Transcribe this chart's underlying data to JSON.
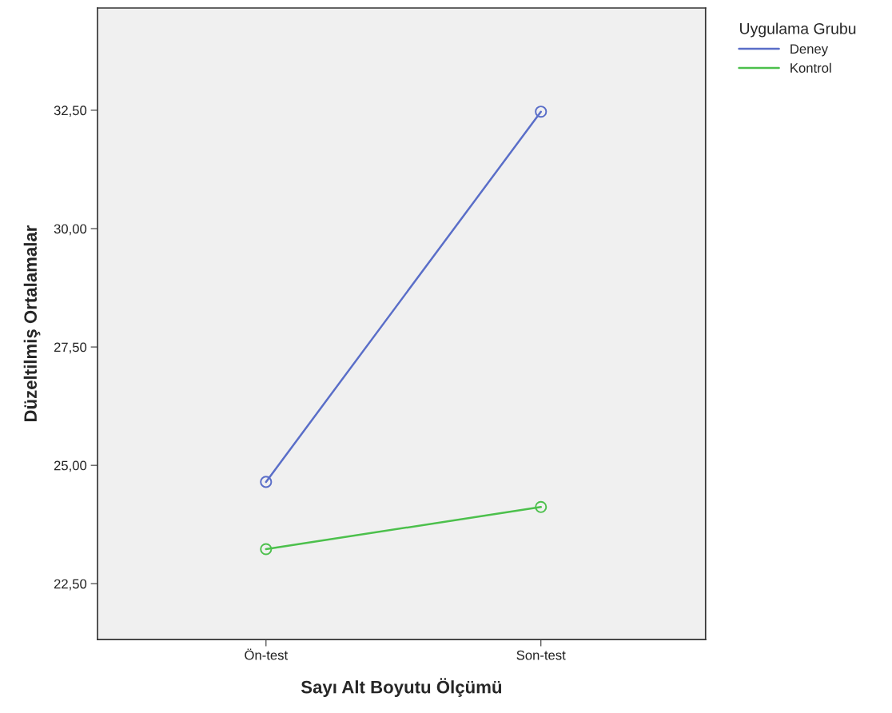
{
  "chart_data": {
    "type": "line",
    "xlabel": "Sayı Alt Boyutu Ölçümü",
    "ylabel": "Düzeltilmiş Ortalamalar",
    "legend_title": "Uygulama Grubu",
    "categories": [
      "Ön-test",
      "Son-test"
    ],
    "series": [
      {
        "name": "Deney",
        "color": "#5a6ec8",
        "values": [
          24.65,
          32.47
        ]
      },
      {
        "name": "Kontrol",
        "color": "#4cc04c",
        "values": [
          23.23,
          24.12
        ]
      }
    ],
    "ylim": [
      21.32,
      34.66
    ],
    "yticks": [
      {
        "value": 22.5,
        "label": "22,50"
      },
      {
        "value": 25,
        "label": "25,00"
      },
      {
        "value": 27.5,
        "label": "27,50"
      },
      {
        "value": 30,
        "label": "30,00"
      },
      {
        "value": 32.5,
        "label": "32,50"
      }
    ],
    "marker": "circle",
    "line_style": "solid",
    "grid": false,
    "legend": "right"
  }
}
